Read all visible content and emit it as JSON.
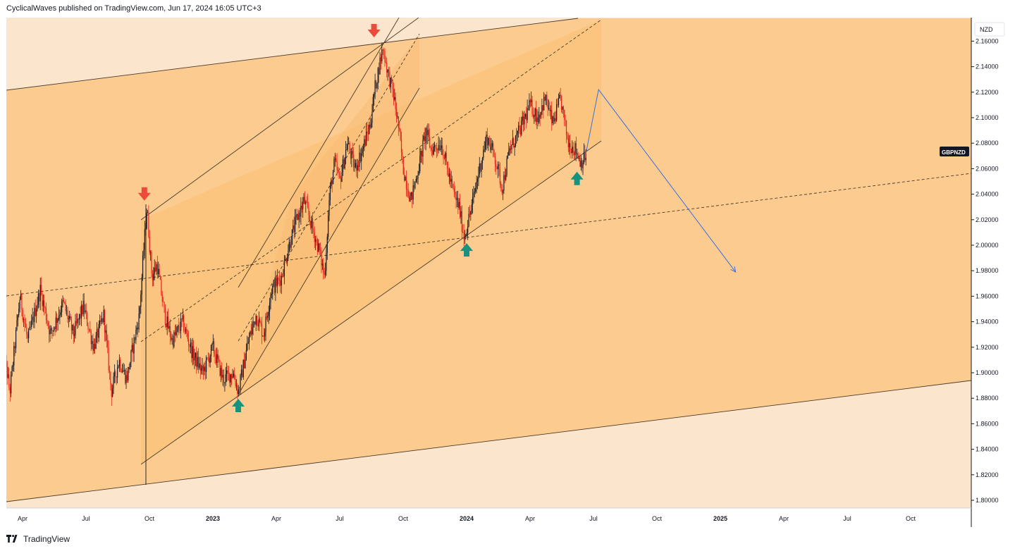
{
  "header": {
    "publisher_line": "CyclicalWaves published on TradingView.com, Jun 17, 2024 16:05 UTC+3"
  },
  "footer": {
    "brand": "TradingView"
  },
  "colors": {
    "zone_light": "#fce5cd",
    "zone_mid": "#fccb8f",
    "zone_dark": "#fbc27a",
    "candle_up": "#131722",
    "candle_down": "#e5221c",
    "arrow_down": "#ee4a3c",
    "arrow_up": "#14937e",
    "projection": "#3a6fd8",
    "trendline": "#4a3a2a"
  },
  "chart_data": {
    "type": "candlestick",
    "symbol": "GBPNZD",
    "currency": "NZD",
    "y_range": [
      1.795,
      2.172
    ],
    "y_ticks": [
      "2.16000",
      "2.14000",
      "2.12000",
      "2.10000",
      "2.08000",
      "2.06000",
      "2.04000",
      "2.02000",
      "2.00000",
      "1.98000",
      "1.96000",
      "1.94000",
      "1.92000",
      "1.90000",
      "1.88000",
      "1.86000",
      "1.84000",
      "1.82000",
      "1.80000"
    ],
    "x_ticks": [
      {
        "label": "Apr",
        "t": 2022.25,
        "bold": false
      },
      {
        "label": "Jul",
        "t": 2022.5,
        "bold": false
      },
      {
        "label": "Oct",
        "t": 2022.75,
        "bold": false
      },
      {
        "label": "2023",
        "t": 2023.0,
        "bold": true
      },
      {
        "label": "Apr",
        "t": 2023.25,
        "bold": false
      },
      {
        "label": "Jul",
        "t": 2023.5,
        "bold": false
      },
      {
        "label": "Oct",
        "t": 2023.75,
        "bold": false
      },
      {
        "label": "2024",
        "t": 2024.0,
        "bold": true
      },
      {
        "label": "Apr",
        "t": 2024.25,
        "bold": false
      },
      {
        "label": "Jul",
        "t": 2024.5,
        "bold": false
      },
      {
        "label": "Oct",
        "t": 2024.75,
        "bold": false
      },
      {
        "label": "2025",
        "t": 2025.0,
        "bold": true
      },
      {
        "label": "Apr",
        "t": 2025.25,
        "bold": false
      },
      {
        "label": "Jul",
        "t": 2025.5,
        "bold": false
      },
      {
        "label": "Oct",
        "t": 2025.75,
        "bold": false
      }
    ],
    "price_path": [
      [
        2022.17,
        1.925
      ],
      [
        2022.2,
        1.885
      ],
      [
        2022.24,
        1.96
      ],
      [
        2022.27,
        1.925
      ],
      [
        2022.32,
        1.965
      ],
      [
        2022.36,
        1.93
      ],
      [
        2022.41,
        1.955
      ],
      [
        2022.45,
        1.93
      ],
      [
        2022.49,
        1.952
      ],
      [
        2022.53,
        1.92
      ],
      [
        2022.57,
        1.945
      ],
      [
        2022.6,
        1.885
      ],
      [
        2022.63,
        1.91
      ],
      [
        2022.66,
        1.895
      ],
      [
        2022.69,
        1.925
      ],
      [
        2022.71,
        1.945
      ],
      [
        2022.725,
        1.99
      ],
      [
        2022.74,
        2.03
      ],
      [
        2022.76,
        1.975
      ],
      [
        2022.78,
        1.985
      ],
      [
        2022.81,
        1.945
      ],
      [
        2022.84,
        1.925
      ],
      [
        2022.88,
        1.94
      ],
      [
        2022.92,
        1.915
      ],
      [
        2022.96,
        1.9
      ],
      [
        2023.0,
        1.92
      ],
      [
        2023.04,
        1.895
      ],
      [
        2023.08,
        1.9
      ],
      [
        2023.1,
        1.885
      ],
      [
        2023.14,
        1.925
      ],
      [
        2023.17,
        1.945
      ],
      [
        2023.2,
        1.93
      ],
      [
        2023.23,
        1.965
      ],
      [
        2023.27,
        1.975
      ],
      [
        2023.3,
        2.0
      ],
      [
        2023.33,
        2.02
      ],
      [
        2023.36,
        2.035
      ],
      [
        2023.39,
        2.015
      ],
      [
        2023.42,
        1.995
      ],
      [
        2023.44,
        1.975
      ],
      [
        2023.46,
        2.04
      ],
      [
        2023.48,
        2.065
      ],
      [
        2023.5,
        2.05
      ],
      [
        2023.53,
        2.08
      ],
      [
        2023.56,
        2.06
      ],
      [
        2023.59,
        2.075
      ],
      [
        2023.62,
        2.095
      ],
      [
        2023.64,
        2.125
      ],
      [
        2023.67,
        2.155
      ],
      [
        2023.69,
        2.135
      ],
      [
        2023.71,
        2.12
      ],
      [
        2023.73,
        2.095
      ],
      [
        2023.75,
        2.06
      ],
      [
        2023.78,
        2.035
      ],
      [
        2023.81,
        2.06
      ],
      [
        2023.84,
        2.09
      ],
      [
        2023.86,
        2.075
      ],
      [
        2023.9,
        2.08
      ],
      [
        2023.93,
        2.055
      ],
      [
        2023.95,
        2.04
      ],
      [
        2023.97,
        2.03
      ],
      [
        2023.99,
        2.006
      ],
      [
        2024.02,
        2.03
      ],
      [
        2024.05,
        2.06
      ],
      [
        2024.08,
        2.085
      ],
      [
        2024.11,
        2.07
      ],
      [
        2024.14,
        2.045
      ],
      [
        2024.17,
        2.075
      ],
      [
        2024.21,
        2.09
      ],
      [
        2024.25,
        2.11
      ],
      [
        2024.28,
        2.1
      ],
      [
        2024.31,
        2.115
      ],
      [
        2024.34,
        2.095
      ],
      [
        2024.37,
        2.115
      ],
      [
        2024.4,
        2.08
      ],
      [
        2024.43,
        2.075
      ],
      [
        2024.45,
        2.065
      ],
      [
        2024.47,
        2.07
      ]
    ],
    "annotations": {
      "down_arrows": [
        {
          "t": 2022.73,
          "price": 2.03
        },
        {
          "t": 2023.635,
          "price": 2.158
        }
      ],
      "up_arrows": [
        {
          "t": 2023.1,
          "price": 1.884
        },
        {
          "t": 2024.0,
          "price": 2.006
        },
        {
          "t": 2024.435,
          "price": 2.062
        }
      ],
      "projection": [
        [
          2024.47,
          2.072
        ],
        [
          2024.52,
          2.122
        ],
        [
          2025.06,
          1.979
        ]
      ]
    }
  }
}
